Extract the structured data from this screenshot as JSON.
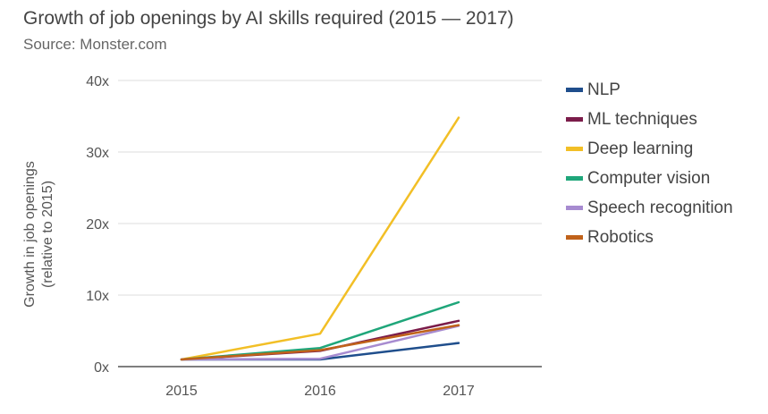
{
  "title": "Growth of job openings by AI skills required (2015 — 2017)",
  "subtitle": "Source: Monster.com",
  "chart_data": {
    "type": "line",
    "title": "Growth of job openings by AI skills required (2015 — 2017)",
    "subtitle": "Source: Monster.com",
    "xlabel": "",
    "ylabel": "Growth in job openings (relative to 2015)",
    "ylabel_lines": [
      "Growth in job openings",
      "(relative to 2015)"
    ],
    "x": [
      "2015",
      "2016",
      "2017"
    ],
    "ylim": [
      0,
      40
    ],
    "yticks": [
      0,
      10,
      20,
      30,
      40
    ],
    "ytick_labels": [
      "0x",
      "10x",
      "20x",
      "30x",
      "40x"
    ],
    "grid": true,
    "legend_position": "right",
    "series": [
      {
        "name": "NLP",
        "color": "#1f4e8c",
        "values": [
          1.0,
          1.0,
          3.3
        ]
      },
      {
        "name": "ML techniques",
        "color": "#7b1c4a",
        "values": [
          1.0,
          2.2,
          6.4
        ]
      },
      {
        "name": "Deep learning",
        "color": "#f2bf26",
        "values": [
          1.0,
          4.6,
          34.8
        ]
      },
      {
        "name": "Computer vision",
        "color": "#1fa67a",
        "values": [
          1.0,
          2.6,
          9.0
        ]
      },
      {
        "name": "Speech recognition",
        "color": "#a78bd0",
        "values": [
          1.0,
          1.1,
          5.7
        ]
      },
      {
        "name": "Robotics",
        "color": "#c0621a",
        "values": [
          1.0,
          2.3,
          5.8
        ]
      }
    ]
  }
}
